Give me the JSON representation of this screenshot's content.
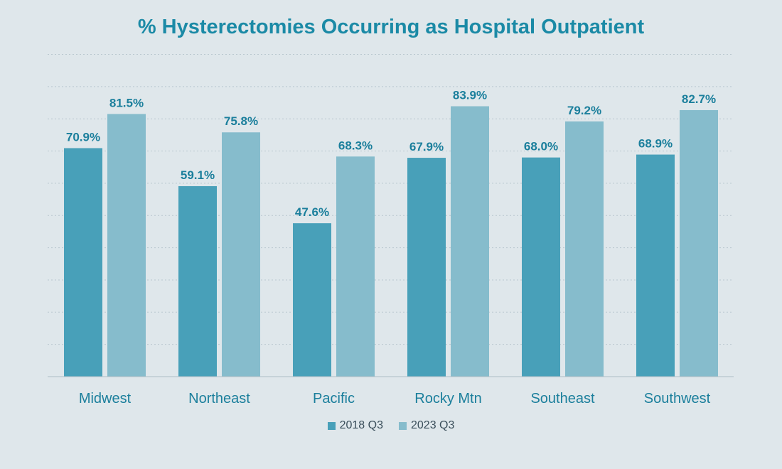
{
  "chart_data": {
    "type": "bar",
    "title": "% Hysterectomies Occurring as Hospital Outpatient",
    "categories": [
      "Midwest",
      "Northeast",
      "Pacific",
      "Rocky Mtn",
      "Southeast",
      "Southwest"
    ],
    "series": [
      {
        "name": "2018 Q3",
        "values": [
          70.9,
          59.1,
          47.6,
          67.9,
          68.0,
          68.9
        ],
        "labels": [
          "70.9%",
          "59.1%",
          "47.6%",
          "67.9%",
          "68.0%",
          "68.9%"
        ],
        "color": "#48a0b9"
      },
      {
        "name": "2023 Q3",
        "values": [
          81.5,
          75.8,
          68.3,
          83.9,
          79.2,
          82.7
        ],
        "labels": [
          "81.5%",
          "75.8%",
          "68.3%",
          "83.9%",
          "79.2%",
          "82.7%"
        ],
        "color": "#86bccc"
      }
    ],
    "ylim": [
      0,
      100
    ],
    "grid": true,
    "legend_position": "bottom"
  },
  "colors": {
    "background": "#dfe7eb",
    "title": "#1b8aa6",
    "data_label": "#1b7f9c",
    "axis_label": "#1b7f9c",
    "gridline": "#b9c7cf"
  }
}
